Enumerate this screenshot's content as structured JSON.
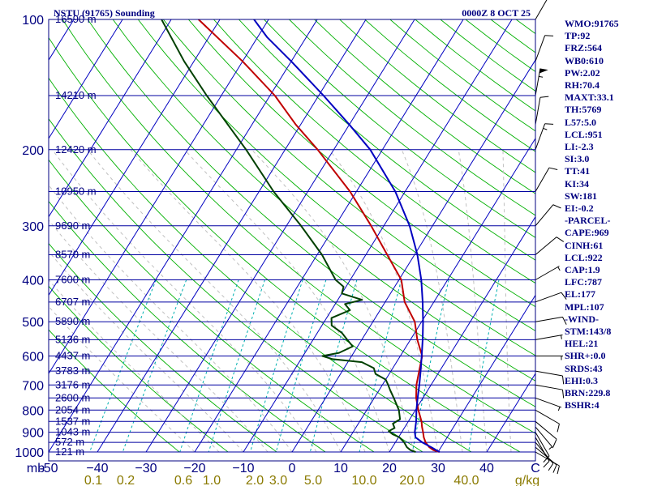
{
  "header": {
    "station_title": "NSTU (91765) Sounding",
    "valid_time": "0000Z  8 OCT 25"
  },
  "indices": [
    "WMO:91765",
    "TP:92",
    "FRZ:564",
    "WB0:610",
    "PW:2.02",
    "RH:70.4",
    "MAXT:33.1",
    "TH:5769",
    "L57:5.0",
    "LCL:951",
    "LI:-2.3",
    "SI:3.0",
    "TT:41",
    "KI:34",
    "SW:181",
    "EI:-0.2",
    "-PARCEL-",
    "CAPE:969",
    "CINH:61",
    "LCL:922",
    "CAP:1.9",
    "LFC:787",
    "EL:177",
    "MPL:107",
    "-WIND-",
    "STM:143/8",
    "HEL:21",
    "SHR+:0.0",
    "SRDS:43",
    "EHI:0.3",
    "BRN:229.8",
    "BSHR:4"
  ],
  "colors": {
    "frame": "#000080",
    "isobar": "#0000a0",
    "isotherm": "#0000c0",
    "dry_adiabat": "#00b000",
    "moist_adiabat": "#c0c0c0",
    "mixing_ratio": "#00b0b0",
    "temperature": "#c00000",
    "dewpoint": "#004000",
    "parcel": "#0000c0",
    "mixing_ratio_text": "#8a7a00",
    "wind": "#000000"
  },
  "chart_data": {
    "type": "skew-t",
    "xlabel": "",
    "ylabel": "mb",
    "pressure_range_mb": [
      1000,
      100
    ],
    "temperature_range_c": [
      -50,
      50
    ],
    "pressure_ticks": [
      100,
      200,
      300,
      400,
      500,
      600,
      700,
      800,
      900,
      1000
    ],
    "pressure_labels": [
      "100",
      "200",
      "300",
      "400",
      "500",
      "600",
      "700",
      "800",
      "900",
      "1000"
    ],
    "temperature_ticks": [
      -50,
      -40,
      -30,
      -20,
      -10,
      0,
      10,
      20,
      30,
      40,
      50
    ],
    "temperature_labels": [
      "-50",
      "−40",
      "−30",
      "−20",
      "−10",
      "0",
      "10",
      "20",
      "30",
      "40",
      "C"
    ],
    "mixing_ratio_labels": [
      "0.1",
      "0.2",
      "0.6",
      "1.0",
      "2.0",
      "3.0",
      "5.0",
      "10.0",
      "20.0",
      "40.0",
      "g/kg"
    ],
    "height_levels": [
      {
        "p": 100,
        "label": "16590 m"
      },
      {
        "p": 150,
        "label": "14210 m"
      },
      {
        "p": 200,
        "label": "12420 m"
      },
      {
        "p": 250,
        "label": "10950 m"
      },
      {
        "p": 300,
        "label": "9690 m"
      },
      {
        "p": 350,
        "label": "8570 m"
      },
      {
        "p": 400,
        "label": "7600 m"
      },
      {
        "p": 450,
        "label": "6707 m"
      },
      {
        "p": 500,
        "label": "5890 m"
      },
      {
        "p": 550,
        "label": "5136 m"
      },
      {
        "p": 600,
        "label": "4437 m"
      },
      {
        "p": 650,
        "label": "3783 m"
      },
      {
        "p": 700,
        "label": "3176 m"
      },
      {
        "p": 750,
        "label": "2600 m"
      },
      {
        "p": 800,
        "label": "2054 m"
      },
      {
        "p": 850,
        "label": "1537 m"
      },
      {
        "p": 900,
        "label": "1043 m"
      },
      {
        "p": 950,
        "label": "572 m"
      },
      {
        "p": 1000,
        "label": "121 m"
      }
    ],
    "series": [
      {
        "key": "temperature",
        "points": [
          [
            1000,
            30.3
          ],
          [
            990,
            28.8
          ],
          [
            975,
            27.6
          ],
          [
            950,
            26.2
          ],
          [
            925,
            25.2
          ],
          [
            900,
            24.4
          ],
          [
            875,
            23.5
          ],
          [
            850,
            22.7
          ],
          [
            800,
            20.6
          ],
          [
            750,
            18.6
          ],
          [
            700,
            17.0
          ],
          [
            650,
            15.8
          ],
          [
            600,
            14.5
          ],
          [
            550,
            11.4
          ],
          [
            500,
            8.6
          ],
          [
            450,
            4.0
          ],
          [
            400,
            0.5
          ],
          [
            350,
            -5.6
          ],
          [
            300,
            -12.6
          ],
          [
            250,
            -21.3
          ],
          [
            200,
            -33.3
          ],
          [
            175,
            -41.0
          ],
          [
            150,
            -49.0
          ],
          [
            125,
            -60.0
          ],
          [
            100,
            -74.4
          ]
        ]
      },
      {
        "key": "dewpoint",
        "points": [
          [
            1000,
            25.4
          ],
          [
            990,
            24.1
          ],
          [
            975,
            23.0
          ],
          [
            950,
            21.8
          ],
          [
            925,
            20.2
          ],
          [
            910,
            18.4
          ],
          [
            895,
            17.2
          ],
          [
            880,
            18.0
          ],
          [
            860,
            17.1
          ],
          [
            840,
            18.0
          ],
          [
            800,
            16.6
          ],
          [
            750,
            14.0
          ],
          [
            720,
            12.3
          ],
          [
            700,
            11.2
          ],
          [
            680,
            10.0
          ],
          [
            660,
            7.2
          ],
          [
            640,
            6.1
          ],
          [
            620,
            2.9
          ],
          [
            610,
            -3.5
          ],
          [
            600,
            -6.0
          ],
          [
            590,
            -3.0
          ],
          [
            570,
            -1.0
          ],
          [
            550,
            -3.0
          ],
          [
            530,
            -5.0
          ],
          [
            510,
            -8.0
          ],
          [
            490,
            -9.0
          ],
          [
            470,
            -6.2
          ],
          [
            455,
            -8.0
          ],
          [
            445,
            -5.0
          ],
          [
            430,
            -10.0
          ],
          [
            415,
            -10.5
          ],
          [
            400,
            -13.0
          ],
          [
            350,
            -19.0
          ],
          [
            300,
            -27.0
          ],
          [
            250,
            -37.0
          ],
          [
            200,
            -48.0
          ],
          [
            150,
            -63.0
          ],
          [
            125,
            -72.0
          ],
          [
            100,
            -82.0
          ]
        ]
      },
      {
        "key": "parcel",
        "points": [
          [
            1000,
            30.3
          ],
          [
            975,
            28.0
          ],
          [
            950,
            25.5
          ],
          [
            925,
            23.5
          ],
          [
            900,
            22.7
          ],
          [
            850,
            21.6
          ],
          [
            800,
            20.2
          ],
          [
            750,
            18.9
          ],
          [
            700,
            17.6
          ],
          [
            650,
            16.1
          ],
          [
            600,
            14.4
          ],
          [
            550,
            12.5
          ],
          [
            500,
            10.3
          ],
          [
            450,
            7.7
          ],
          [
            400,
            4.6
          ],
          [
            350,
            0.6
          ],
          [
            300,
            -4.7
          ],
          [
            250,
            -12.0
          ],
          [
            200,
            -22.5
          ],
          [
            175,
            -30.0
          ],
          [
            150,
            -39.0
          ],
          [
            125,
            -50.0
          ],
          [
            110,
            -58.0
          ],
          [
            100,
            -63.0
          ]
        ]
      }
    ],
    "winds_kt": [
      {
        "p": 1000,
        "dir": 120,
        "spd": 10
      },
      {
        "p": 975,
        "dir": 130,
        "spd": 12
      },
      {
        "p": 950,
        "dir": 140,
        "spd": 10
      },
      {
        "p": 925,
        "dir": 150,
        "spd": 10
      },
      {
        "p": 900,
        "dir": 150,
        "spd": 10
      },
      {
        "p": 875,
        "dir": 140,
        "spd": 5
      },
      {
        "p": 850,
        "dir": 130,
        "spd": 10
      },
      {
        "p": 800,
        "dir": 120,
        "spd": 10
      },
      {
        "p": 750,
        "dir": 110,
        "spd": 5
      },
      {
        "p": 700,
        "dir": 100,
        "spd": 10
      },
      {
        "p": 650,
        "dir": 100,
        "spd": 10
      },
      {
        "p": 600,
        "dir": 90,
        "spd": 5
      },
      {
        "p": 550,
        "dir": 80,
        "spd": 5
      },
      {
        "p": 500,
        "dir": 80,
        "spd": 10
      },
      {
        "p": 450,
        "dir": 70,
        "spd": 10
      },
      {
        "p": 400,
        "dir": 60,
        "spd": 5
      },
      {
        "p": 350,
        "dir": 50,
        "spd": 10
      },
      {
        "p": 300,
        "dir": 40,
        "spd": 10
      },
      {
        "p": 250,
        "dir": 30,
        "spd": 10
      },
      {
        "p": 200,
        "dir": 20,
        "spd": 15
      },
      {
        "p": 175,
        "dir": 10,
        "spd": 10
      },
      {
        "p": 150,
        "dir": 10,
        "spd": 55
      },
      {
        "p": 125,
        "dir": 20,
        "spd": 10
      },
      {
        "p": 100,
        "dir": 30,
        "spd": 5
      }
    ]
  }
}
